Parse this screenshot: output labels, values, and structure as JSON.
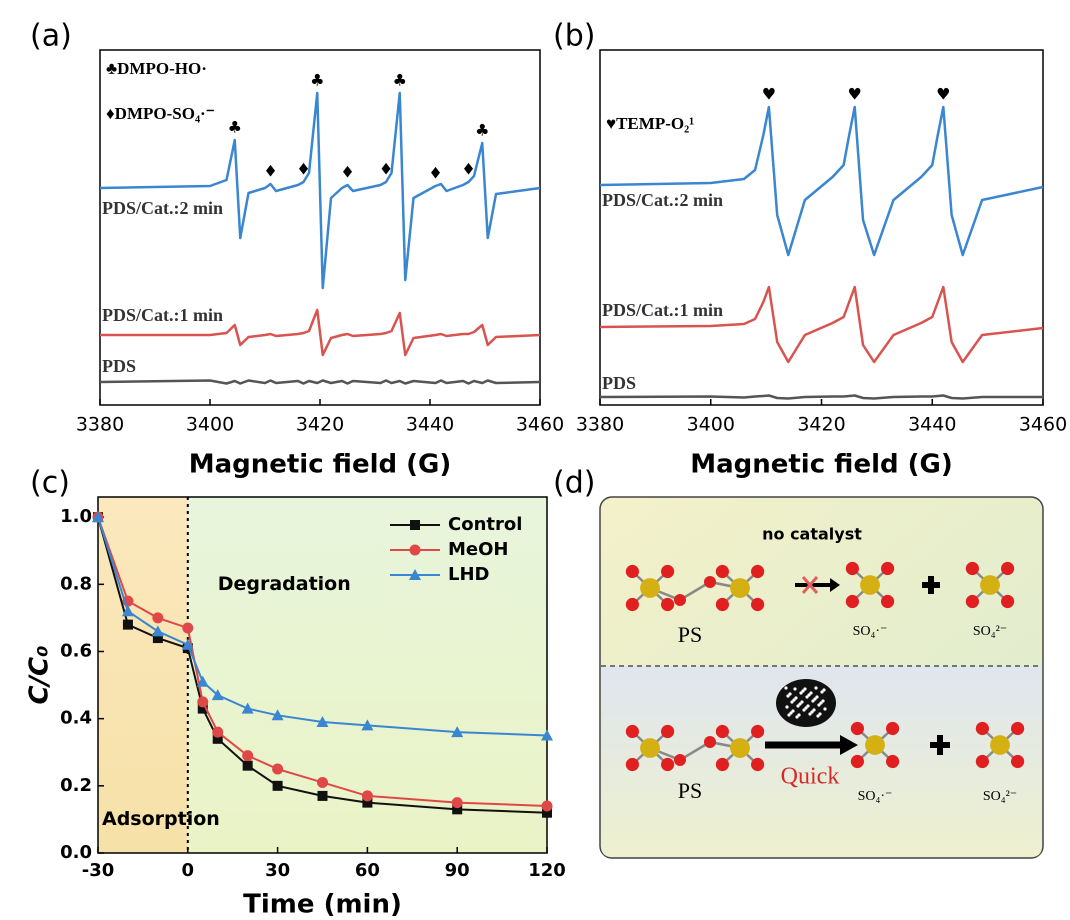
{
  "chart_data": [
    {
      "type": "line",
      "label": "(a)",
      "xlabel": "Magnetic field (G)",
      "xlim": [
        3380,
        3460
      ],
      "xticks": [
        3380,
        3400,
        3420,
        3440,
        3460
      ],
      "legend_texts": [
        "♣DMPO-HO·",
        "♦DMPO-SO₄·⁻"
      ],
      "peak_markers": [
        {
          "symbol": "♣",
          "x": 3404.5
        },
        {
          "symbol": "♣",
          "x": 3419.5
        },
        {
          "symbol": "♣",
          "x": 3434.5
        },
        {
          "symbol": "♣",
          "x": 3449.5
        },
        {
          "symbol": "♦",
          "x": 3411
        },
        {
          "symbol": "♦",
          "x": 3417
        },
        {
          "symbol": "♦",
          "x": 3425
        },
        {
          "symbol": "♦",
          "x": 3432
        },
        {
          "symbol": "♦",
          "x": 3441
        },
        {
          "symbol": "♦",
          "x": 3447
        }
      ],
      "x": [
        3380,
        3400,
        3403,
        3404.5,
        3405.5,
        3407,
        3410,
        3411,
        3412,
        3416,
        3417,
        3418,
        3419.5,
        3420.5,
        3422,
        3424,
        3425,
        3426,
        3431,
        3432,
        3433,
        3434.5,
        3435.5,
        3437,
        3441,
        3442,
        3443,
        3446,
        3447,
        3448,
        3449.5,
        3450.5,
        3452,
        3460
      ],
      "series": [
        {
          "name": "PDS/Cat.:2 min",
          "color": "#3a86d0",
          "values": [
            0,
            2,
            8,
            48,
            -50,
            -5,
            0,
            4,
            -3,
            3,
            6,
            15,
            95,
            -100,
            -10,
            0,
            3,
            -3,
            3,
            6,
            15,
            95,
            -92,
            -10,
            2,
            4,
            -3,
            3,
            6,
            12,
            45,
            -50,
            -6,
            0
          ]
        },
        {
          "name": "PDS/Cat.:1 min",
          "color": "#d9534f",
          "values": [
            0,
            0,
            2,
            10,
            -10,
            -2,
            0,
            1,
            -1,
            1,
            2,
            4,
            25,
            -20,
            -3,
            0,
            1,
            -1,
            1,
            2,
            4,
            22,
            -20,
            -3,
            0,
            1,
            -1,
            1,
            1,
            3,
            10,
            -10,
            -2,
            0
          ]
        },
        {
          "name": "PDS",
          "color": "#555555",
          "values": [
            0,
            1.5,
            -1.5,
            1,
            -1.5,
            1.5,
            -1,
            1.5,
            -1,
            1,
            -1.5,
            1,
            -1,
            1.5,
            -1,
            1,
            -1.5,
            1,
            -1,
            1.5,
            -1,
            1,
            -1.5,
            1,
            -1,
            1.5,
            -1,
            1,
            -1.5,
            1,
            -1,
            1.5,
            -1,
            0
          ]
        }
      ]
    },
    {
      "type": "line",
      "label": "(b)",
      "xlabel": "Magnetic field (G)",
      "xlim": [
        3380,
        3460
      ],
      "xticks": [
        3380,
        3400,
        3420,
        3440,
        3460
      ],
      "legend_texts": [
        "♥TEMP-O₂¹"
      ],
      "peak_markers": [
        {
          "symbol": "♥",
          "x": 3410.5
        },
        {
          "symbol": "♥",
          "x": 3426
        },
        {
          "symbol": "♥",
          "x": 3442
        }
      ],
      "x": [
        3380,
        3400,
        3406,
        3408,
        3409.5,
        3410.5,
        3412,
        3414,
        3417,
        3422,
        3424,
        3425,
        3426,
        3427.5,
        3429.5,
        3433,
        3438,
        3440,
        3441,
        3442,
        3443.5,
        3445.5,
        3449,
        3460
      ],
      "series": [
        {
          "name": "PDS/Cat.:2 min",
          "color": "#3a86d0",
          "values": [
            0,
            2,
            6,
            15,
            50,
            78,
            -30,
            -70,
            -15,
            8,
            20,
            50,
            78,
            -35,
            -70,
            -15,
            8,
            20,
            50,
            78,
            -30,
            -70,
            -15,
            -2
          ]
        },
        {
          "name": "PDS/Cat.:1 min",
          "color": "#d9534f",
          "values": [
            0,
            1,
            3,
            8,
            25,
            40,
            -15,
            -35,
            -8,
            4,
            10,
            25,
            40,
            -18,
            -35,
            -8,
            4,
            10,
            25,
            40,
            -15,
            -35,
            -8,
            -1
          ]
        },
        {
          "name": "PDS",
          "color": "#555555",
          "values": [
            0,
            0.5,
            -0.5,
            0.5,
            1,
            1.5,
            -1,
            -1.5,
            0,
            0.5,
            0.5,
            1,
            1.5,
            -1,
            -1.5,
            0,
            0.5,
            0.5,
            1,
            1.5,
            -1,
            -1.5,
            0,
            0
          ]
        }
      ]
    },
    {
      "type": "line",
      "label": "(c)",
      "xlabel": "Time (min)",
      "ylabel": "C/C₀",
      "xlim": [
        -30,
        120
      ],
      "xticks": [
        -30,
        0,
        30,
        60,
        90,
        120
      ],
      "ylim": [
        0,
        1.06
      ],
      "yticks": [
        {
          "value": 0,
          "label": "0.0"
        },
        0.2,
        0.4,
        0.6,
        0.8,
        {
          "value": 1,
          "label": "1.0"
        }
      ],
      "annotations": [
        "Degradation",
        "Adsorption"
      ],
      "x": [
        -30,
        -20,
        -10,
        0,
        5,
        10,
        20,
        30,
        45,
        60,
        90,
        120
      ],
      "series": [
        {
          "name": "Control",
          "color": "#111111",
          "marker": "square",
          "values": [
            1.0,
            0.68,
            0.64,
            0.61,
            0.43,
            0.34,
            0.26,
            0.2,
            0.17,
            0.15,
            0.13,
            0.12
          ]
        },
        {
          "name": "MeOH",
          "color": "#e04848",
          "marker": "circle",
          "values": [
            1.0,
            0.75,
            0.7,
            0.67,
            0.45,
            0.36,
            0.29,
            0.25,
            0.21,
            0.17,
            0.15,
            0.14
          ]
        },
        {
          "name": "LHD",
          "color": "#3a86d0",
          "marker": "triangle",
          "values": [
            1.0,
            0.72,
            0.66,
            0.62,
            0.51,
            0.47,
            0.43,
            0.41,
            0.39,
            0.38,
            0.36,
            0.35
          ]
        }
      ]
    }
  ],
  "panel_d": {
    "label": "(d)",
    "top": {
      "caption": "no catalyst",
      "reactant": "PS",
      "product1": "SO₄·⁻",
      "product2": "SO₄²⁻"
    },
    "bottom": {
      "caption": "Quick",
      "reactant": "PS",
      "product1": "SO₄·⁻",
      "product2": "SO₄²⁻"
    }
  }
}
